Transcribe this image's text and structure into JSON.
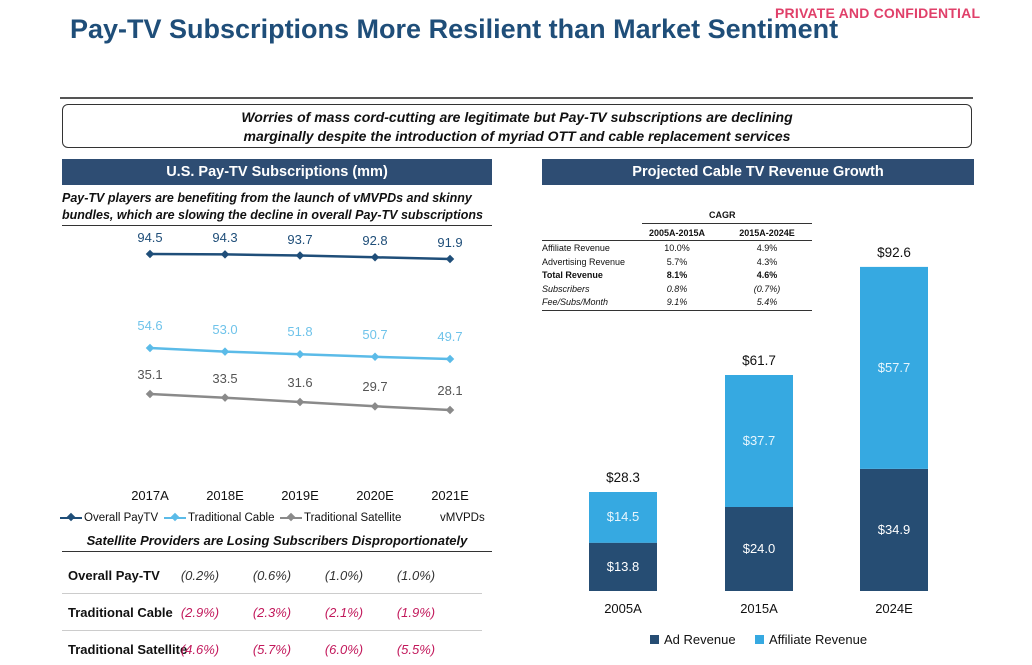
{
  "header": {
    "confidential": "PRIVATE AND CONFIDENTIAL",
    "title": "Pay-TV Subscriptions More Resilient than Market Sentiment",
    "callout_line1": "Worries of mass cord-cutting are legitimate but Pay-TV subscriptions are declining",
    "callout_line2": "marginally despite the introduction of myriad OTT and cable replacement services"
  },
  "left_panel": {
    "heading": "U.S. Pay-TV Subscriptions (mm)",
    "subtitle_line1": "Pay-TV players are benefiting from the launch of vMVPDs and skinny",
    "subtitle_line2": "bundles, which are slowing the decline in overall Pay-TV subscriptions",
    "legend": {
      "overall": "Overall PayTV",
      "cable": "Traditional Cable",
      "satellite": "Traditional Satellite",
      "vmvpds": "vMVPDs"
    },
    "table_title": "Satellite Providers are Losing Subscribers Disproportionately",
    "table": [
      {
        "label": "Overall Pay-TV",
        "values": [
          "(0.2%)",
          "(0.6%)",
          "(1.0%)",
          "(1.0%)"
        ],
        "color": "#333333"
      },
      {
        "label": "Traditional Cable",
        "values": [
          "(2.9%)",
          "(2.3%)",
          "(2.1%)",
          "(1.9%)"
        ],
        "color": "#c2185b"
      },
      {
        "label": "Traditional Satellite",
        "values": [
          "(4.6%)",
          "(5.7%)",
          "(6.0%)",
          "(5.5%)"
        ],
        "color": "#c2185b"
      }
    ]
  },
  "right_panel": {
    "heading": "Projected Cable TV Revenue Growth",
    "cagr_title": "CAGR",
    "cagr_cols": [
      "2005A-2015A",
      "2015A-2024E"
    ],
    "cagr_rows": [
      {
        "label": "Affiliate Revenue",
        "v1": "10.0%",
        "v2": "4.9%",
        "style": "normal"
      },
      {
        "label": "Advertising Revenue",
        "v1": "5.7%",
        "v2": "4.3%",
        "style": "normal"
      },
      {
        "label": "Total Revenue",
        "v1": "8.1%",
        "v2": "4.6%",
        "style": "bold"
      },
      {
        "label": "Subscribers",
        "v1": "0.8%",
        "v2": "(0.7%)",
        "style": "italic"
      },
      {
        "label": "Fee/Subs/Month",
        "v1": "9.1%",
        "v2": "5.4%",
        "style": "italic"
      }
    ],
    "legend": {
      "ad": "Ad Revenue",
      "affiliate": "Affiliate Revenue"
    }
  },
  "colors": {
    "navy": "#2e4d73",
    "overall": "#1f4e79",
    "cable": "#5bbbe8",
    "satellite": "#8a8a8a",
    "ad_bar": "#264d73",
    "affiliate_bar": "#36a9e1"
  },
  "chart_data": [
    {
      "type": "line",
      "title": "U.S. Pay-TV Subscriptions (mm)",
      "categories": [
        "2017A",
        "2018E",
        "2019E",
        "2020E",
        "2021E"
      ],
      "series": [
        {
          "name": "Overall PayTV",
          "values": [
            94.5,
            94.3,
            93.7,
            92.8,
            91.9
          ],
          "labels": [
            "94.5",
            "94.3",
            "93.7",
            "92.8",
            "91.9"
          ]
        },
        {
          "name": "Traditional Cable",
          "values": [
            54.6,
            53.0,
            51.8,
            50.7,
            49.7
          ],
          "labels": [
            "54.6",
            "53.0",
            "51.8",
            "50.7",
            "49.7"
          ]
        },
        {
          "name": "Traditional Satellite",
          "values": [
            35.1,
            33.5,
            31.6,
            29.7,
            28.1
          ],
          "labels": [
            "35.1",
            "33.5",
            "31.6",
            "29.7",
            "28.1"
          ]
        }
      ],
      "legend": "bottom"
    },
    {
      "type": "bar",
      "stacked": true,
      "title": "Projected Cable TV Revenue Growth",
      "categories": [
        "2005A",
        "2015A",
        "2024E"
      ],
      "series": [
        {
          "name": "Ad Revenue",
          "values": [
            13.8,
            24.0,
            34.9
          ],
          "labels": [
            "$13.8",
            "$24.0",
            "$34.9"
          ]
        },
        {
          "name": "Affiliate Revenue",
          "values": [
            14.5,
            37.7,
            57.7
          ],
          "labels": [
            "$14.5",
            "$37.7",
            "$57.7"
          ]
        }
      ],
      "totals": [
        "$28.3",
        "$61.7",
        "$92.6"
      ],
      "legend": "bottom"
    }
  ]
}
